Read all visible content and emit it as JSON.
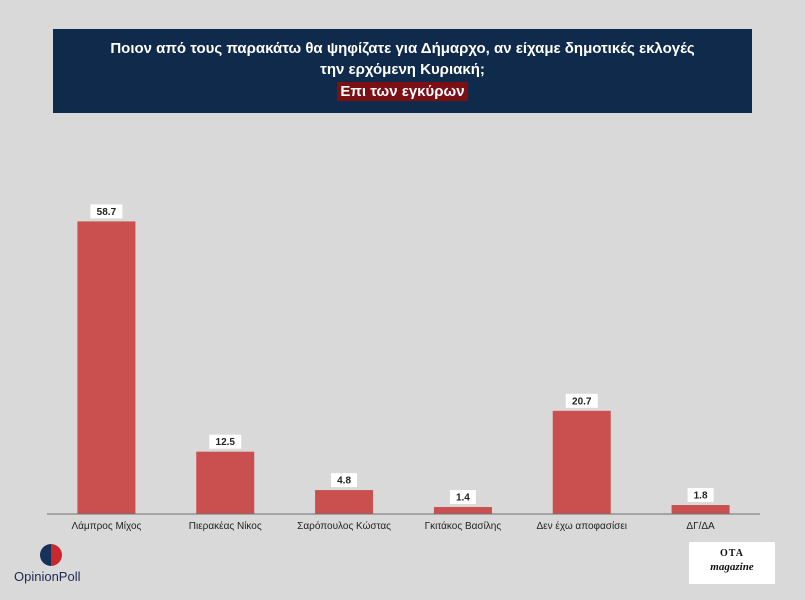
{
  "header": {
    "title_line1": "Ποιον από τους παρακάτω θα ψηφίζατε για Δήμαρχο, αν είχαμε δημοτικές εκλογές",
    "title_line2": "την ερχόμενη Κυριακή;",
    "subtitle": "Επι των εγκύρων"
  },
  "colors": {
    "background": "#d9d9d9",
    "bar": "#c9504f",
    "title_bg": "#0f2a4a",
    "subtitle_bg": "#7a0f14"
  },
  "chart_data": {
    "type": "bar",
    "categories": [
      "Λάμπρος Μίχος",
      "Πιερακέας Νίκος",
      "Σαρόπουλος Κώστας",
      "Γκιτάκος Βασίλης",
      "Δεν έχω αποφασίσει",
      "ΔΓ/ΔΑ"
    ],
    "values": [
      58.7,
      12.5,
      4.8,
      1.4,
      20.7,
      1.8
    ],
    "data_labels": [
      "58.7",
      "12.5",
      "4.8",
      "1.4",
      "20.7",
      "1.8"
    ],
    "ylim": [
      0,
      65
    ],
    "grid": false,
    "legend": "none"
  },
  "logos": {
    "left": "OpinionPoll",
    "right_top": "OTA",
    "right_bottom": "magazine"
  }
}
